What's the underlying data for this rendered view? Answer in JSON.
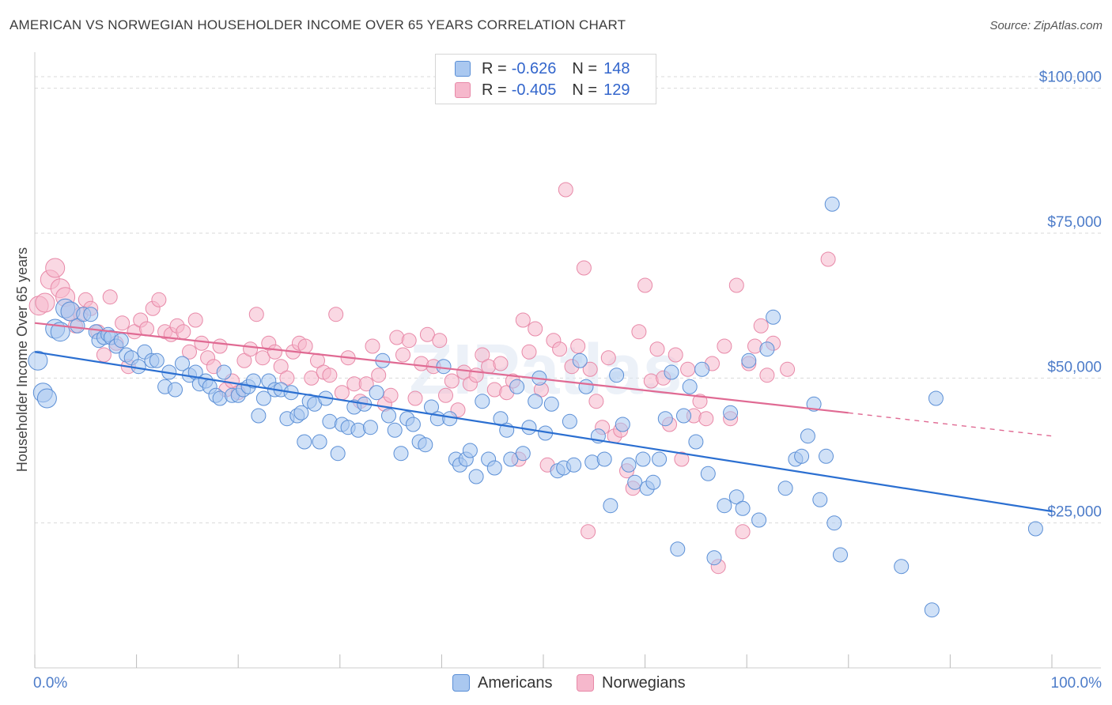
{
  "title": "AMERICAN VS NORWEGIAN HOUSEHOLDER INCOME OVER 65 YEARS CORRELATION CHART",
  "source": "Source: ZipAtlas.com",
  "watermark": "ZIPatlas",
  "legend": {
    "rows": [
      {
        "r_label": "R =",
        "r_value": "-0.626",
        "n_label": "N =",
        "n_value": "148",
        "color": "#aac8f0"
      },
      {
        "r_label": "R =",
        "r_value": "-0.405",
        "n_label": "N =",
        "n_value": "129",
        "color": "#f6b8cc"
      }
    ]
  },
  "bottom_legend": {
    "americans": "Americans",
    "norwegians": "Norwegians"
  },
  "colors": {
    "americans_fill": "#aac8f0",
    "americans_stroke": "#5b8fd6",
    "americans_line": "#2b6fd1",
    "norwegians_fill": "#f6b8cc",
    "norwegians_stroke": "#e889a8",
    "norwegians_line": "#e06a93",
    "tick_text": "#4d7cc9",
    "grid": "#d9d9d9"
  },
  "chart_data": {
    "type": "scatter",
    "title": "AMERICAN VS NORWEGIAN HOUSEHOLDER INCOME OVER 65 YEARS CORRELATION CHART",
    "xlabel": "",
    "ylabel": "Householder Income Over 65 years",
    "xlim": [
      0,
      100
    ],
    "ylim": [
      0,
      105000
    ],
    "x_tick_labels": [
      "0.0%",
      "100.0%"
    ],
    "y_ticks": [
      {
        "value": 25000,
        "label": "$25,000"
      },
      {
        "value": 50000,
        "label": "$50,000"
      },
      {
        "value": 75000,
        "label": "$75,000"
      },
      {
        "value": 100000,
        "label": "$100,000"
      }
    ],
    "series": [
      {
        "name": "Americans",
        "r": -0.626,
        "n": 148,
        "trend": {
          "x0": 0,
          "y0": 54500,
          "x1": 100,
          "y1": 27000,
          "dashed_from": 100
        },
        "points": [
          [
            0.3,
            53000
          ],
          [
            0.8,
            47500
          ],
          [
            1.2,
            46500
          ],
          [
            2.0,
            58500
          ],
          [
            2.5,
            58000
          ],
          [
            3.0,
            62000
          ],
          [
            3.5,
            61500
          ],
          [
            4.2,
            59000
          ],
          [
            4.8,
            61000
          ],
          [
            5.5,
            61000
          ],
          [
            6.0,
            58000
          ],
          [
            6.3,
            56500
          ],
          [
            6.8,
            57000
          ],
          [
            7.2,
            57500
          ],
          [
            7.5,
            57000
          ],
          [
            8.0,
            55500
          ],
          [
            8.5,
            56500
          ],
          [
            9.0,
            54000
          ],
          [
            9.5,
            53500
          ],
          [
            10.2,
            52000
          ],
          [
            10.8,
            54500
          ],
          [
            11.5,
            53000
          ],
          [
            12.0,
            53000
          ],
          [
            12.8,
            48500
          ],
          [
            13.2,
            51000
          ],
          [
            13.8,
            48000
          ],
          [
            14.5,
            52500
          ],
          [
            15.2,
            50500
          ],
          [
            15.8,
            51000
          ],
          [
            16.2,
            49000
          ],
          [
            16.8,
            49500
          ],
          [
            17.2,
            48500
          ],
          [
            17.8,
            47000
          ],
          [
            18.2,
            46500
          ],
          [
            18.6,
            51000
          ],
          [
            19.4,
            47000
          ],
          [
            20.0,
            47000
          ],
          [
            20.5,
            48000
          ],
          [
            21.0,
            48500
          ],
          [
            21.5,
            49500
          ],
          [
            22.0,
            43500
          ],
          [
            22.5,
            46500
          ],
          [
            23.0,
            49500
          ],
          [
            23.6,
            48000
          ],
          [
            24.2,
            48000
          ],
          [
            24.8,
            43000
          ],
          [
            25.2,
            47500
          ],
          [
            25.8,
            43500
          ],
          [
            26.2,
            44000
          ],
          [
            26.5,
            39000
          ],
          [
            27.0,
            46000
          ],
          [
            27.5,
            45500
          ],
          [
            28.0,
            39000
          ],
          [
            28.6,
            46500
          ],
          [
            29.0,
            42500
          ],
          [
            29.8,
            37000
          ],
          [
            30.2,
            42000
          ],
          [
            30.8,
            41500
          ],
          [
            31.4,
            45000
          ],
          [
            31.8,
            41000
          ],
          [
            32.4,
            45500
          ],
          [
            33.0,
            41500
          ],
          [
            33.6,
            47500
          ],
          [
            34.2,
            53000
          ],
          [
            34.8,
            43500
          ],
          [
            35.4,
            41000
          ],
          [
            36.0,
            37000
          ],
          [
            36.6,
            43000
          ],
          [
            37.2,
            42000
          ],
          [
            37.8,
            39000
          ],
          [
            38.4,
            38500
          ],
          [
            39.0,
            45000
          ],
          [
            39.6,
            43000
          ],
          [
            40.2,
            52000
          ],
          [
            40.8,
            43000
          ],
          [
            41.4,
            36000
          ],
          [
            41.8,
            35000
          ],
          [
            42.4,
            36000
          ],
          [
            42.8,
            37500
          ],
          [
            43.4,
            33000
          ],
          [
            44.0,
            46000
          ],
          [
            44.6,
            36000
          ],
          [
            45.2,
            34500
          ],
          [
            45.8,
            43000
          ],
          [
            46.4,
            41000
          ],
          [
            46.8,
            36000
          ],
          [
            47.4,
            48500
          ],
          [
            48.0,
            37000
          ],
          [
            48.6,
            41500
          ],
          [
            49.2,
            46000
          ],
          [
            49.6,
            50000
          ],
          [
            50.2,
            40500
          ],
          [
            50.8,
            45500
          ],
          [
            51.4,
            34000
          ],
          [
            52.0,
            34500
          ],
          [
            52.6,
            42500
          ],
          [
            53.0,
            35000
          ],
          [
            53.6,
            53000
          ],
          [
            54.2,
            48500
          ],
          [
            54.8,
            35500
          ],
          [
            55.4,
            40000
          ],
          [
            56.0,
            36000
          ],
          [
            56.6,
            28000
          ],
          [
            57.2,
            50500
          ],
          [
            57.8,
            42000
          ],
          [
            58.4,
            35000
          ],
          [
            59.0,
            32000
          ],
          [
            59.8,
            36000
          ],
          [
            60.2,
            31000
          ],
          [
            60.8,
            32000
          ],
          [
            61.4,
            36000
          ],
          [
            62.0,
            43000
          ],
          [
            62.6,
            51000
          ],
          [
            63.2,
            20500
          ],
          [
            63.8,
            43500
          ],
          [
            64.4,
            48500
          ],
          [
            65.0,
            39000
          ],
          [
            65.6,
            51500
          ],
          [
            66.2,
            33500
          ],
          [
            66.8,
            19000
          ],
          [
            67.8,
            28000
          ],
          [
            68.4,
            44000
          ],
          [
            69.0,
            29500
          ],
          [
            69.6,
            27500
          ],
          [
            70.2,
            53000
          ],
          [
            71.2,
            25500
          ],
          [
            72.0,
            55000
          ],
          [
            72.6,
            60500
          ],
          [
            73.8,
            31000
          ],
          [
            74.8,
            36000
          ],
          [
            75.4,
            36500
          ],
          [
            76.0,
            40000
          ],
          [
            76.6,
            45500
          ],
          [
            77.2,
            29000
          ],
          [
            77.8,
            36500
          ],
          [
            78.6,
            25000
          ],
          [
            78.4,
            80000
          ],
          [
            79.2,
            19500
          ],
          [
            85.2,
            17500
          ],
          [
            88.2,
            10000
          ],
          [
            88.6,
            46500
          ],
          [
            98.4,
            24000
          ]
        ]
      },
      {
        "name": "Norwegians",
        "r": -0.405,
        "n": 129,
        "trend": {
          "x0": 0,
          "y0": 59500,
          "x1": 80,
          "y1": 44000,
          "dashed_from": 80,
          "x2": 100,
          "y2": 40000
        },
        "points": [
          [
            0.4,
            62500
          ],
          [
            1.0,
            63000
          ],
          [
            1.5,
            67000
          ],
          [
            2.0,
            69000
          ],
          [
            2.5,
            65500
          ],
          [
            3.0,
            64000
          ],
          [
            3.5,
            61500
          ],
          [
            4.0,
            59000
          ],
          [
            4.5,
            61000
          ],
          [
            5.0,
            63500
          ],
          [
            5.5,
            62000
          ],
          [
            6.2,
            58000
          ],
          [
            6.8,
            54000
          ],
          [
            7.4,
            64000
          ],
          [
            8.0,
            56000
          ],
          [
            8.6,
            59500
          ],
          [
            9.2,
            52000
          ],
          [
            9.8,
            58000
          ],
          [
            10.4,
            60000
          ],
          [
            11.0,
            58500
          ],
          [
            11.6,
            62000
          ],
          [
            12.2,
            63500
          ],
          [
            12.8,
            58000
          ],
          [
            13.4,
            57500
          ],
          [
            14.0,
            59000
          ],
          [
            14.6,
            58000
          ],
          [
            15.2,
            54500
          ],
          [
            15.8,
            60000
          ],
          [
            16.4,
            56000
          ],
          [
            17.0,
            53500
          ],
          [
            17.6,
            52000
          ],
          [
            18.2,
            55500
          ],
          [
            18.8,
            48000
          ],
          [
            19.4,
            49500
          ],
          [
            20.0,
            47500
          ],
          [
            20.6,
            53000
          ],
          [
            21.2,
            55000
          ],
          [
            21.8,
            61000
          ],
          [
            22.4,
            53500
          ],
          [
            23.0,
            56000
          ],
          [
            23.6,
            54500
          ],
          [
            24.2,
            52000
          ],
          [
            24.8,
            50000
          ],
          [
            25.4,
            54500
          ],
          [
            26.0,
            56000
          ],
          [
            26.6,
            55500
          ],
          [
            27.2,
            50000
          ],
          [
            27.8,
            53000
          ],
          [
            28.4,
            51000
          ],
          [
            29.0,
            50500
          ],
          [
            29.6,
            61000
          ],
          [
            30.2,
            47500
          ],
          [
            30.8,
            53500
          ],
          [
            31.4,
            49000
          ],
          [
            32.0,
            46000
          ],
          [
            32.6,
            49000
          ],
          [
            33.2,
            55500
          ],
          [
            33.8,
            50500
          ],
          [
            34.4,
            45500
          ],
          [
            35.0,
            47000
          ],
          [
            35.6,
            57000
          ],
          [
            36.2,
            54000
          ],
          [
            36.8,
            56500
          ],
          [
            37.4,
            46500
          ],
          [
            38.0,
            52500
          ],
          [
            38.6,
            57500
          ],
          [
            39.2,
            52000
          ],
          [
            39.8,
            56500
          ],
          [
            40.4,
            47000
          ],
          [
            41.0,
            49500
          ],
          [
            41.6,
            44500
          ],
          [
            42.2,
            51000
          ],
          [
            42.8,
            49000
          ],
          [
            43.4,
            50500
          ],
          [
            44.0,
            54000
          ],
          [
            44.6,
            52000
          ],
          [
            45.2,
            48000
          ],
          [
            45.8,
            52500
          ],
          [
            46.4,
            47500
          ],
          [
            47.0,
            49500
          ],
          [
            47.6,
            36000
          ],
          [
            48.0,
            60000
          ],
          [
            48.6,
            54500
          ],
          [
            49.2,
            58500
          ],
          [
            49.8,
            48000
          ],
          [
            50.4,
            35000
          ],
          [
            51.0,
            56500
          ],
          [
            51.6,
            55000
          ],
          [
            52.2,
            82500
          ],
          [
            52.8,
            52000
          ],
          [
            53.4,
            55500
          ],
          [
            54.0,
            69000
          ],
          [
            54.6,
            51500
          ],
          [
            55.2,
            46000
          ],
          [
            55.8,
            41500
          ],
          [
            56.4,
            53500
          ],
          [
            57.0,
            40000
          ],
          [
            57.6,
            41000
          ],
          [
            58.2,
            34000
          ],
          [
            58.8,
            31000
          ],
          [
            59.4,
            58000
          ],
          [
            60.0,
            66000
          ],
          [
            60.6,
            49500
          ],
          [
            61.2,
            55000
          ],
          [
            61.8,
            50000
          ],
          [
            62.4,
            42000
          ],
          [
            63.0,
            54000
          ],
          [
            63.6,
            36000
          ],
          [
            64.2,
            51500
          ],
          [
            64.8,
            43500
          ],
          [
            65.4,
            46000
          ],
          [
            66.0,
            43000
          ],
          [
            66.6,
            52500
          ],
          [
            67.2,
            17500
          ],
          [
            67.8,
            55500
          ],
          [
            68.4,
            43000
          ],
          [
            69.0,
            66000
          ],
          [
            69.6,
            23500
          ],
          [
            70.2,
            52500
          ],
          [
            70.8,
            55500
          ],
          [
            71.4,
            59000
          ],
          [
            72.0,
            50500
          ],
          [
            72.6,
            56000
          ],
          [
            74.0,
            51500
          ],
          [
            78.0,
            70500
          ],
          [
            54.4,
            23500
          ]
        ]
      }
    ]
  }
}
